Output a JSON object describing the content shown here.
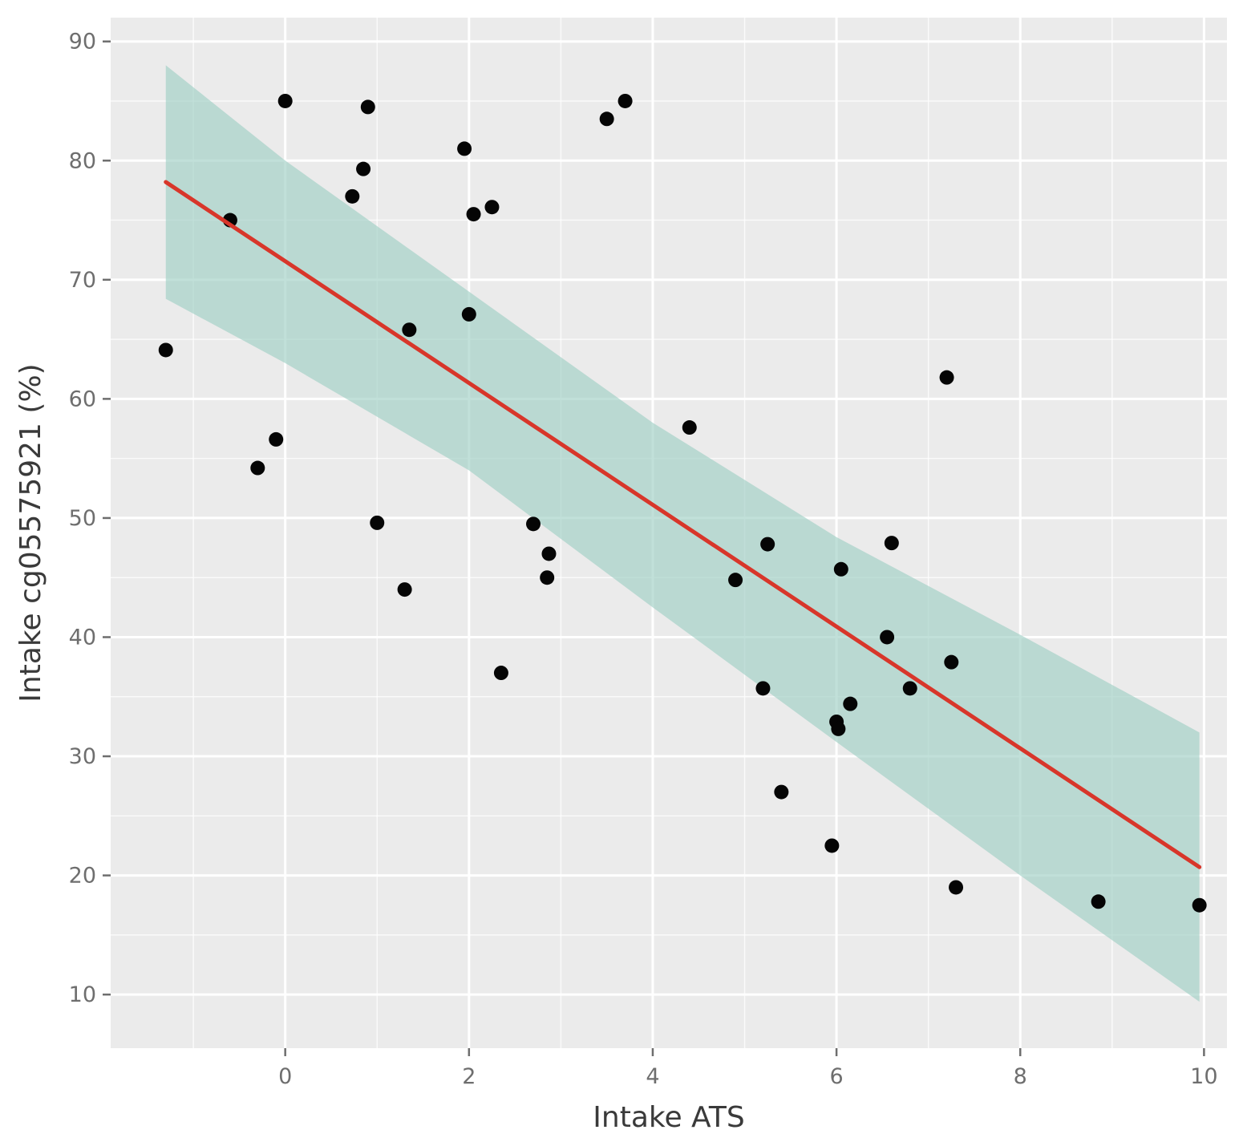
{
  "chart_data": {
    "type": "scatter",
    "title": "",
    "xlabel": "Intake ATS",
    "ylabel": "Intake cg05575921 (%)",
    "xlim": [
      -1.9,
      10.25
    ],
    "ylim": [
      5.5,
      92
    ],
    "x_ticks": [
      0,
      2,
      4,
      6,
      8,
      10
    ],
    "y_ticks": [
      10,
      20,
      30,
      40,
      50,
      60,
      70,
      80,
      90
    ],
    "grid": true,
    "background": "#ebebeb",
    "points": [
      {
        "x": -1.3,
        "y": 64.1
      },
      {
        "x": -0.6,
        "y": 75.0
      },
      {
        "x": -0.3,
        "y": 54.2
      },
      {
        "x": -0.1,
        "y": 56.6
      },
      {
        "x": 0.0,
        "y": 85.0
      },
      {
        "x": 0.73,
        "y": 77.0
      },
      {
        "x": 0.85,
        "y": 79.3
      },
      {
        "x": 0.9,
        "y": 84.5
      },
      {
        "x": 1.0,
        "y": 49.6
      },
      {
        "x": 1.3,
        "y": 44.0
      },
      {
        "x": 1.35,
        "y": 65.8
      },
      {
        "x": 1.95,
        "y": 81.0
      },
      {
        "x": 2.0,
        "y": 67.1
      },
      {
        "x": 2.05,
        "y": 75.5
      },
      {
        "x": 2.25,
        "y": 76.1
      },
      {
        "x": 2.35,
        "y": 37.0
      },
      {
        "x": 2.7,
        "y": 49.5
      },
      {
        "x": 2.85,
        "y": 45.0
      },
      {
        "x": 2.87,
        "y": 47.0
      },
      {
        "x": 3.5,
        "y": 83.5
      },
      {
        "x": 3.7,
        "y": 85.0
      },
      {
        "x": 4.4,
        "y": 57.6
      },
      {
        "x": 4.9,
        "y": 44.8
      },
      {
        "x": 5.2,
        "y": 35.7
      },
      {
        "x": 5.25,
        "y": 47.8
      },
      {
        "x": 5.4,
        "y": 27.0
      },
      {
        "x": 5.95,
        "y": 22.5
      },
      {
        "x": 6.0,
        "y": 32.9
      },
      {
        "x": 6.02,
        "y": 32.3
      },
      {
        "x": 6.05,
        "y": 45.7
      },
      {
        "x": 6.15,
        "y": 34.4
      },
      {
        "x": 6.55,
        "y": 40.0
      },
      {
        "x": 6.6,
        "y": 47.9
      },
      {
        "x": 6.8,
        "y": 35.7
      },
      {
        "x": 7.2,
        "y": 61.8
      },
      {
        "x": 7.25,
        "y": 37.9
      },
      {
        "x": 7.3,
        "y": 19.0
      },
      {
        "x": 8.85,
        "y": 17.8
      },
      {
        "x": 9.95,
        "y": 17.5
      }
    ],
    "fit_line": {
      "x": [
        -1.3,
        9.95
      ],
      "y": [
        78.2,
        20.7
      ]
    },
    "confidence_band": {
      "x": [
        -1.3,
        0.0,
        2.0,
        4.0,
        6.0,
        8.0,
        9.95
      ],
      "upper": [
        88.0,
        80.0,
        69.0,
        58.0,
        48.4,
        40.2,
        32.0
      ],
      "lower": [
        68.4,
        63.0,
        54.0,
        42.5,
        31.2,
        20.0,
        9.4
      ]
    },
    "colors": {
      "points": "#050505",
      "fit_line": "#d8362a",
      "band_fill": "#9fcfc4",
      "band_opacity": 0.65,
      "grid": "#ffffff"
    }
  }
}
